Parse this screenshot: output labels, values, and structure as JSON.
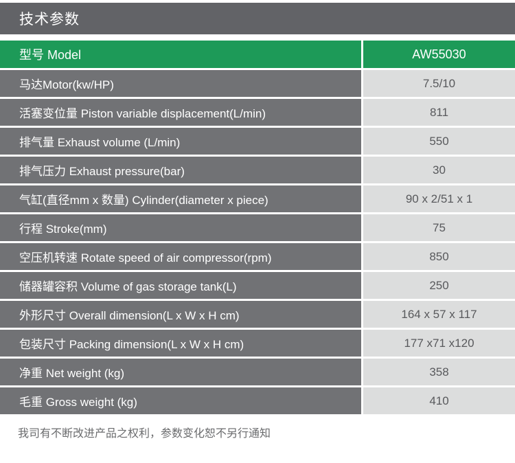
{
  "header": {
    "title": "技术参数"
  },
  "table": {
    "model_row": {
      "label": "型号 Model",
      "value": "AW55030"
    },
    "rows": [
      {
        "label": "马达Motor(kw/HP)",
        "value": "7.5/10"
      },
      {
        "label": "活塞变位量 Piston variable displacement(L/min)",
        "value": "811"
      },
      {
        "label": "排气量 Exhaust volume (L/min)",
        "value": "550"
      },
      {
        "label": "排气压力 Exhaust pressure(bar)",
        "value": "30"
      },
      {
        "label": "气缸(直径mm x 数量) Cylinder(diameter x piece)",
        "value": "90 x 2/51 x 1"
      },
      {
        "label": "行程 Stroke(mm)",
        "value": "75"
      },
      {
        "label": "空压机转速 Rotate speed of air compressor(rpm)",
        "value": "850"
      },
      {
        "label": "储器罐容积 Volume of gas storage tank(L)",
        "value": "250"
      },
      {
        "label": "外形尺寸 Overall dimension(L x W x H cm)",
        "value": "164 x 57 x 117"
      },
      {
        "label": "包装尺寸 Packing dimension(L x W x H cm)",
        "value": "177 x71 x120"
      },
      {
        "label": "净重 Net weight (kg)",
        "value": "358"
      },
      {
        "label": "毛重 Gross weight (kg)",
        "value": "410"
      }
    ]
  },
  "footer": {
    "note": "我司有不断改进产品之权利，参数变化恕不另行通知"
  },
  "colors": {
    "accent_green": "#1d9a58",
    "header_bar_gray": "#626367",
    "label_cell_gray": "#717275",
    "value_cell_gray": "#dcdddd",
    "value_text_gray": "#58595c"
  }
}
